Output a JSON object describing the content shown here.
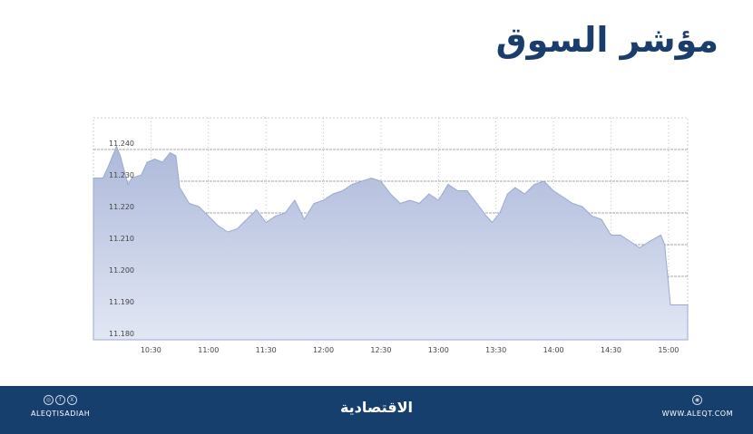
{
  "title": "مؤشر السوق",
  "chart_data": {
    "type": "area",
    "title": "مؤشر السوق",
    "xlabel": "",
    "ylabel": "",
    "x_ticks": [
      "10:30",
      "11:00",
      "11:30",
      "12:00",
      "12:30",
      "13:00",
      "13:30",
      "14:00",
      "14:30",
      "15:00"
    ],
    "y_ticks": [
      "11.240",
      "11.230",
      "11.220",
      "11.210",
      "11.200",
      "11.190",
      "11.180"
    ],
    "ylim": [
      11.18,
      11.25
    ],
    "xlim": [
      "10:00",
      "15:10"
    ],
    "grid": true,
    "fill_color": "#b3bfdc",
    "line_color": "#9aa9cf",
    "x": [
      "10:00",
      "10:05",
      "10:08",
      "10:12",
      "10:14",
      "10:18",
      "10:20",
      "10:25",
      "10:28",
      "10:32",
      "10:36",
      "10:40",
      "10:43",
      "10:45",
      "10:50",
      "10:55",
      "11:00",
      "11:05",
      "11:10",
      "11:15",
      "11:20",
      "11:25",
      "11:30",
      "11:35",
      "11:40",
      "11:45",
      "11:50",
      "11:55",
      "12:00",
      "12:05",
      "12:10",
      "12:15",
      "12:20",
      "12:25",
      "12:30",
      "12:35",
      "12:40",
      "12:45",
      "12:50",
      "12:55",
      "13:00",
      "13:05",
      "13:10",
      "13:15",
      "13:20",
      "13:25",
      "13:28",
      "13:32",
      "13:36",
      "13:40",
      "13:45",
      "13:50",
      "13:55",
      "14:00",
      "14:05",
      "14:10",
      "14:15",
      "14:20",
      "14:25",
      "14:30",
      "14:35",
      "14:40",
      "14:45",
      "14:50",
      "14:56",
      "14:58",
      "15:01",
      "15:10"
    ],
    "values": [
      11.231,
      11.231,
      11.235,
      11.241,
      11.238,
      11.229,
      11.231,
      11.232,
      11.236,
      11.237,
      11.236,
      11.239,
      11.238,
      11.228,
      11.223,
      11.222,
      11.219,
      11.216,
      11.214,
      11.215,
      11.218,
      11.221,
      11.217,
      11.219,
      11.22,
      11.224,
      11.218,
      11.223,
      11.224,
      11.226,
      11.227,
      11.229,
      11.23,
      11.231,
      11.23,
      11.226,
      11.223,
      11.224,
      11.223,
      11.226,
      11.224,
      11.229,
      11.227,
      11.227,
      11.223,
      11.219,
      11.217,
      11.22,
      11.226,
      11.228,
      11.226,
      11.229,
      11.23,
      11.227,
      11.225,
      11.223,
      11.222,
      11.219,
      11.218,
      11.213,
      11.213,
      11.211,
      11.209,
      11.211,
      11.213,
      11.21,
      11.191,
      11.191
    ]
  },
  "footer": {
    "social_handle": "ALEQTISADIAH",
    "social_icons": [
      "instagram-icon",
      "facebook-icon",
      "x-icon"
    ],
    "logo": "الاقتصادية",
    "website": "WWW.ALEQT.COM",
    "web_icon": "globe-icon"
  }
}
